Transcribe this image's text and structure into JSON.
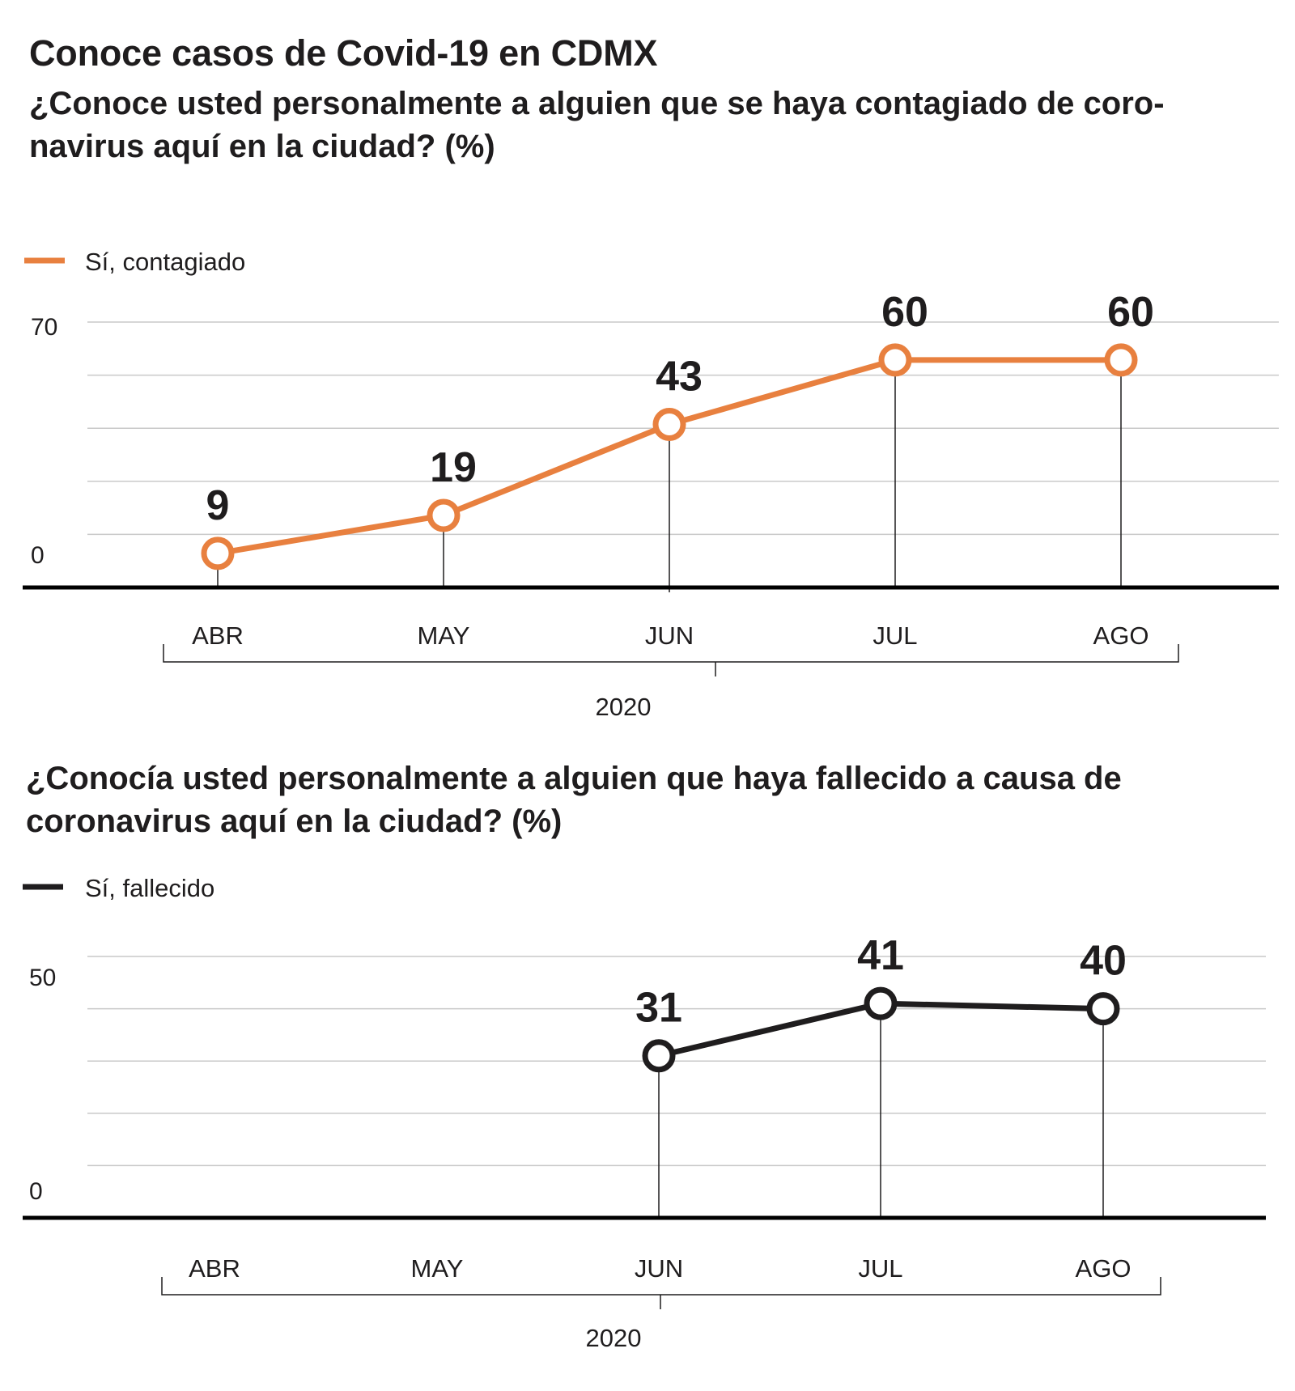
{
  "title": "Conoce casos de Covid-19 en CDMX",
  "chart_data": [
    {
      "type": "line",
      "subtitle": "¿Conoce usted personalmente a alguien que se haya contagiado de coro-\nnavirus aquí en la ciudad? (%)",
      "categories": [
        "ABR",
        "MAY",
        "JUN",
        "JUL",
        "AGO"
      ],
      "year_label": "2020",
      "ylim": [
        0,
        70
      ],
      "y_tick_labels": [
        "70",
        "0"
      ],
      "grid": true,
      "legend_position": "top-left",
      "series": [
        {
          "name": "Sí, contagiado",
          "color": "#e8803f",
          "values": [
            9,
            19,
            43,
            60,
            60
          ],
          "labels": [
            "9",
            "19",
            "43",
            "60",
            "60"
          ]
        }
      ]
    },
    {
      "type": "line",
      "subtitle": "¿Conocía usted personalmente a alguien que haya fallecido a causa de\ncoronavirus aquí en la ciudad? (%)",
      "categories": [
        "ABR",
        "MAY",
        "JUN",
        "JUL",
        "AGO"
      ],
      "year_label": "2020",
      "ylim": [
        0,
        50
      ],
      "y_tick_labels": [
        "50",
        "0"
      ],
      "grid": true,
      "legend_position": "top-left",
      "series": [
        {
          "name": "Sí, fallecido",
          "color": "#1f1d1e",
          "values": [
            null,
            null,
            31,
            41,
            40
          ],
          "labels": [
            "",
            "",
            "31",
            "41",
            "40"
          ]
        }
      ]
    }
  ]
}
